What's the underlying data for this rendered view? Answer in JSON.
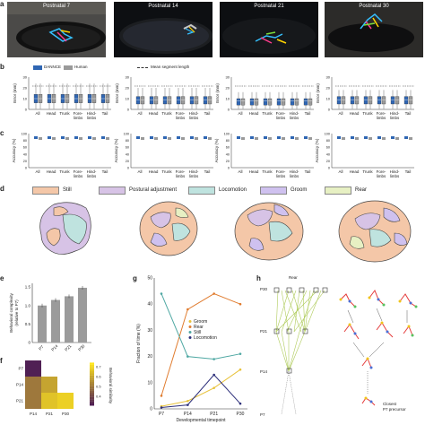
{
  "panel_letters": {
    "a": "a",
    "b": "b",
    "c": "c",
    "d": "d",
    "e": "e",
    "f": "f",
    "g": "g",
    "h": "h"
  },
  "photos": [
    {
      "title": "Postnatal 7"
    },
    {
      "title": "Postnatal 14"
    },
    {
      "title": "Postnatal 21"
    },
    {
      "title": "Postnatal 30"
    }
  ],
  "panel_b": {
    "legend": {
      "dannce": "DANNCE",
      "human": "Human",
      "mean_segment": "Mean segment length"
    },
    "ylabel": "Error (mm)",
    "ymax_ticks": [
      "0",
      "10",
      "20",
      "30"
    ],
    "categories": [
      "All",
      "Head",
      "Trunk",
      "Fore-\nlimbs",
      "Hind-\nlimbs",
      "Tail"
    ]
  },
  "panel_c": {
    "ylabel": "Accuracy (%)",
    "ticks": [
      "0",
      "20",
      "40",
      "60",
      "80",
      "100"
    ],
    "categories": [
      "All",
      "Head",
      "Trunk",
      "Fore-\nlimbs",
      "Hind-\nlimbs",
      "Tail"
    ]
  },
  "panel_d": {
    "legend": [
      {
        "label": "Still",
        "color": "#f4c7a8"
      },
      {
        "label": "Postural adjustment",
        "color": "#d7c3e6"
      },
      {
        "label": "Locomotion",
        "color": "#bfe3df"
      },
      {
        "label": "Groom",
        "color": "#cfc1ef"
      },
      {
        "label": "Rear",
        "color": "#e7f0c3"
      }
    ]
  },
  "chart_data": [
    {
      "type": "bar",
      "ylabel": "Behavioral complexity\n(relative to P7)",
      "categories": [
        "P7",
        "P14",
        "P21",
        "P30"
      ],
      "values": [
        1.0,
        1.15,
        1.25,
        1.48
      ],
      "ylim": [
        0,
        1.6
      ],
      "yticks": [
        "0",
        "0.5",
        "1.0",
        "1.5"
      ]
    },
    {
      "type": "heatmap",
      "xcategories": [
        "P14",
        "P21",
        "P30"
      ],
      "ycategories": [
        "P7",
        "P14",
        "P21"
      ],
      "values": [
        [
          0.35,
          null,
          null
        ],
        [
          0.55,
          0.65,
          null
        ],
        [
          0.55,
          0.72,
          0.75
        ]
      ],
      "colorbar_label": "Behavioral similarity",
      "colorbar_ticks": [
        "0.4",
        "0.5",
        "0.6",
        "0.7"
      ]
    },
    {
      "type": "line",
      "xlabel": "Developmental timepoint",
      "ylabel": "Fraction of time (%)",
      "x": [
        "P7",
        "P14",
        "P21",
        "P30"
      ],
      "ylim": [
        0,
        50
      ],
      "yticks": [
        "0",
        "10",
        "20",
        "30",
        "40",
        "50"
      ],
      "series": [
        {
          "name": "Groom",
          "color": "#e8c23a",
          "values": [
            1,
            3,
            8,
            15
          ]
        },
        {
          "name": "Rear",
          "color": "#e07b2e",
          "values": [
            5,
            38,
            44,
            40
          ]
        },
        {
          "name": "Still",
          "color": "#4fa8a3",
          "values": [
            44,
            20,
            19,
            21
          ]
        },
        {
          "name": "Locomotion",
          "color": "#2d2f7a",
          "values": [
            0.5,
            1.5,
            13,
            2
          ]
        }
      ]
    }
  ],
  "panel_h": {
    "title": "Rear",
    "rows": [
      "P30",
      "P21",
      "P14",
      "P7"
    ],
    "closest_label": "Closest\nP7 precursor"
  }
}
